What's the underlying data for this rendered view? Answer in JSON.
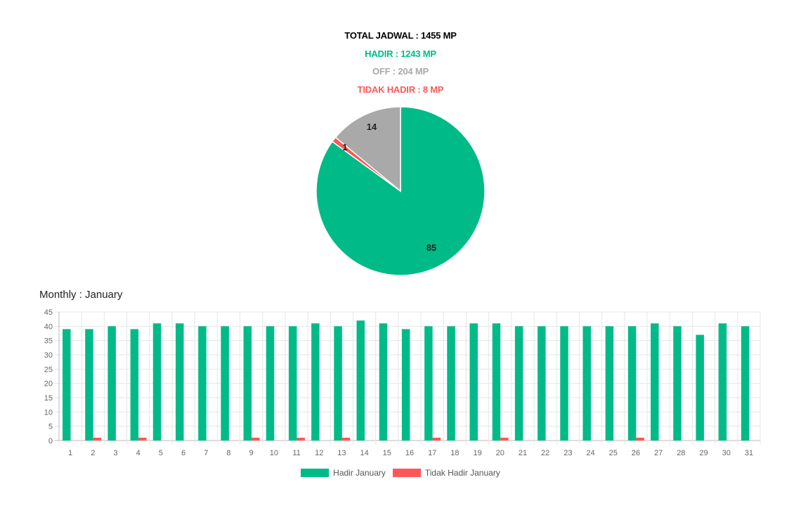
{
  "summary": {
    "total": "TOTAL JADWAL : 1455 MP",
    "hadir": "HADIR : 1243 MP",
    "off": "OFF : 204 MP",
    "tidak_hadir": "TIDAK HADIR : 8 MP"
  },
  "colors": {
    "hadir": "#00bb87",
    "off": "#a9a9a9",
    "tidak_hadir": "#ff5757",
    "total": "#000000"
  },
  "monthly_title": "Monthly : January",
  "chart_data": [
    {
      "type": "pie",
      "slices": [
        {
          "label": "Hadir",
          "value": 85,
          "color": "#00bb87"
        },
        {
          "label": "Tidak Hadir",
          "value": 1,
          "color": "#ff5757"
        },
        {
          "label": "Off",
          "value": 14,
          "color": "#a9a9a9"
        }
      ],
      "data_labels": [
        "85",
        "1",
        "14"
      ]
    },
    {
      "type": "bar",
      "title": "Monthly : January",
      "categories": [
        "1",
        "2",
        "3",
        "4",
        "5",
        "6",
        "7",
        "8",
        "9",
        "10",
        "11",
        "12",
        "13",
        "14",
        "15",
        "16",
        "17",
        "18",
        "19",
        "20",
        "21",
        "22",
        "23",
        "24",
        "25",
        "26",
        "27",
        "28",
        "29",
        "30",
        "31"
      ],
      "series": [
        {
          "name": "Hadir January",
          "color": "#00bb87",
          "values": [
            39,
            39,
            40,
            39,
            41,
            41,
            40,
            40,
            40,
            40,
            40,
            41,
            40,
            42,
            41,
            39,
            40,
            40,
            41,
            41,
            40,
            40,
            40,
            40,
            40,
            40,
            41,
            40,
            37,
            41,
            40
          ]
        },
        {
          "name": "Tidak Hadir January",
          "color": "#ff5757",
          "values": [
            0,
            1,
            0,
            1,
            0,
            0,
            0,
            0,
            1,
            0,
            1,
            0,
            1,
            0,
            0,
            0,
            1,
            0,
            0,
            1,
            0,
            0,
            0,
            0,
            0,
            1,
            0,
            0,
            0,
            0,
            0
          ]
        }
      ],
      "ylim": [
        0,
        45
      ],
      "yticks": [
        0,
        5,
        10,
        15,
        20,
        25,
        30,
        35,
        40,
        45
      ],
      "grid": true,
      "legend": "bottom"
    }
  ]
}
